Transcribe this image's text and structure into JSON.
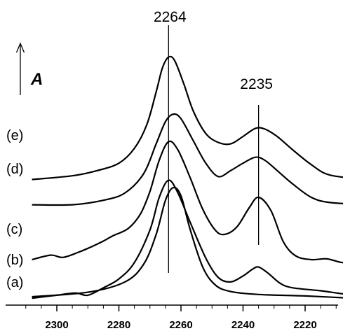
{
  "chart_data": {
    "type": "line",
    "title": "",
    "xlabel": "",
    "ylabel": "A",
    "x_direction": "decreasing",
    "xlim": [
      2310,
      2200
    ],
    "xticks": [
      2300,
      2280,
      2260,
      2240,
      2220
    ],
    "grid": false,
    "peak_labels": [
      {
        "text": "2264",
        "x": 2264
      },
      {
        "text": "2235",
        "x": 2235
      }
    ],
    "series_labels": [
      "(a)",
      "(b)",
      "(c)",
      "(d)",
      "(e)"
    ],
    "series": [
      {
        "label": "(a)",
        "points": [
          [
            2308,
            0.0
          ],
          [
            2290,
            0.3
          ],
          [
            2278,
            1.0
          ],
          [
            2272,
            2.2
          ],
          [
            2268,
            4.2
          ],
          [
            2265,
            6.5
          ],
          [
            2262.5,
            7.35
          ],
          [
            2260,
            6.8
          ],
          [
            2257,
            4.5
          ],
          [
            2253,
            2.0
          ],
          [
            2249,
            0.8
          ],
          [
            2244,
            0.35
          ],
          [
            2235,
            0.15
          ],
          [
            2220,
            0.05
          ],
          [
            2200,
            -0.15
          ]
        ]
      },
      {
        "label": "(b)",
        "points": [
          [
            2308,
            -0.1
          ],
          [
            2300,
            0.1
          ],
          [
            2294,
            0.25
          ],
          [
            2290,
            0.1
          ],
          [
            2285,
            0.6
          ],
          [
            2280,
            1.2
          ],
          [
            2275,
            2.3
          ],
          [
            2270,
            4.5
          ],
          [
            2267,
            6.7
          ],
          [
            2264,
            7.85
          ],
          [
            2261,
            7.0
          ],
          [
            2257,
            5.0
          ],
          [
            2252,
            2.6
          ],
          [
            2248,
            1.3
          ],
          [
            2244,
            1.0
          ],
          [
            2240,
            1.4
          ],
          [
            2237,
            1.85
          ],
          [
            2235,
            2.0
          ],
          [
            2232,
            1.6
          ],
          [
            2228,
            0.9
          ],
          [
            2224,
            0.6
          ],
          [
            2215,
            0.4
          ],
          [
            2208,
            0.2
          ],
          [
            2200,
            0.05
          ]
        ]
      },
      {
        "label": "(c)",
        "points": [
          [
            2308,
            2.5
          ],
          [
            2302,
            2.8
          ],
          [
            2298,
            2.65
          ],
          [
            2293,
            3.0
          ],
          [
            2289,
            3.35
          ],
          [
            2285,
            3.75
          ],
          [
            2282,
            4.1
          ],
          [
            2277,
            4.6
          ],
          [
            2273,
            5.6
          ],
          [
            2270,
            7.1
          ],
          [
            2267,
            9.2
          ],
          [
            2264,
            10.45
          ],
          [
            2261,
            9.9
          ],
          [
            2257,
            8.0
          ],
          [
            2253,
            5.9
          ],
          [
            2249,
            4.5
          ],
          [
            2246,
            4.2
          ],
          [
            2242,
            4.7
          ],
          [
            2238,
            6.0
          ],
          [
            2235,
            6.7
          ],
          [
            2231,
            5.8
          ],
          [
            2227,
            3.7
          ],
          [
            2223,
            2.75
          ],
          [
            2218,
            2.5
          ],
          [
            2213,
            2.55
          ],
          [
            2208,
            2.3
          ],
          [
            2205,
            2.45
          ],
          [
            2200,
            2.3
          ]
        ]
      },
      {
        "label": "(d)",
        "points": [
          [
            2308,
            6.2
          ],
          [
            2295,
            6.2
          ],
          [
            2285,
            6.5
          ],
          [
            2278,
            7.0
          ],
          [
            2272,
            8.3
          ],
          [
            2268,
            10.3
          ],
          [
            2265,
            11.8
          ],
          [
            2262.5,
            12.3
          ],
          [
            2260,
            12.0
          ],
          [
            2256,
            10.5
          ],
          [
            2252,
            9.0
          ],
          [
            2248,
            8.1
          ],
          [
            2244,
            8.5
          ],
          [
            2240,
            9.0
          ],
          [
            2236,
            9.4
          ],
          [
            2233,
            9.2
          ],
          [
            2229,
            8.5
          ],
          [
            2224,
            7.6
          ],
          [
            2218,
            6.7
          ],
          [
            2212,
            6.35
          ],
          [
            2200,
            6.2
          ]
        ]
      },
      {
        "label": "(e)",
        "points": [
          [
            2308,
            7.9
          ],
          [
            2295,
            8.15
          ],
          [
            2287,
            8.5
          ],
          [
            2280,
            9.0
          ],
          [
            2275,
            10.0
          ],
          [
            2271,
            11.6
          ],
          [
            2268,
            13.8
          ],
          [
            2266,
            15.4
          ],
          [
            2264,
            16.15
          ],
          [
            2262,
            15.9
          ],
          [
            2259,
            14.3
          ],
          [
            2256,
            12.5
          ],
          [
            2252,
            11.0
          ],
          [
            2248,
            10.4
          ],
          [
            2244,
            10.3
          ],
          [
            2240,
            10.8
          ],
          [
            2236,
            11.35
          ],
          [
            2233,
            11.3
          ],
          [
            2229,
            10.8
          ],
          [
            2224,
            9.9
          ],
          [
            2218,
            8.9
          ],
          [
            2212,
            8.2
          ],
          [
            2200,
            7.9
          ]
        ]
      }
    ]
  }
}
